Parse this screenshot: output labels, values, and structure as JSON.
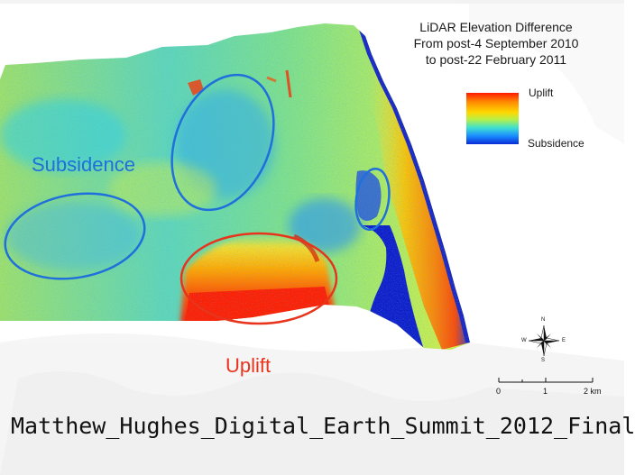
{
  "title": {
    "line1": "LiDAR Elevation Difference",
    "line2": "From post-4 September 2010",
    "line3": "to post-22 February 2011"
  },
  "legend": {
    "uplift_label": "Uplift",
    "subsidence_label": "Subsidence",
    "ramp_colors": [
      "#ff1a00",
      "#ff8c00",
      "#ffd800",
      "#b4f04a",
      "#3fe0d0",
      "#1a8cff",
      "#0a2bd6"
    ]
  },
  "annotations": {
    "subsidence_label": "Subsidence",
    "uplift_label": "Uplift",
    "subsidence_color": "#1f6fdc",
    "uplift_color": "#e8341c"
  },
  "scale_bar": {
    "ticks": [
      "0",
      "1",
      "2 km"
    ]
  },
  "north_arrow": {
    "icon": "compass-rose-icon",
    "north": "N",
    "south": "S",
    "east": "E",
    "west": "W"
  },
  "caption": "Matthew_Hughes_Digital_Earth_Summit_2012_Final"
}
